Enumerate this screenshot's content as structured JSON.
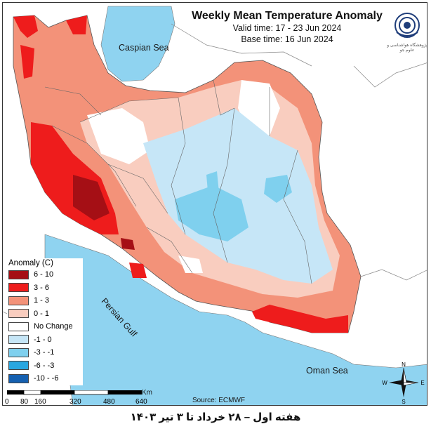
{
  "header": {
    "title": "Weekly Mean Temperature Anomaly",
    "valid_time": "Valid time: 17 - 23 Jun 2024",
    "base_time": "Base time: 16 Jun 2024"
  },
  "logo": {
    "icon": "swirl-logo-icon",
    "text": "پژوهشگاه هواشناسی و علوم جو"
  },
  "water_labels": {
    "caspian": "Caspian Sea",
    "persian_gulf": "Persian Gulf",
    "oman": "Oman Sea"
  },
  "legend": {
    "title": "Anomaly (C)",
    "items": [
      {
        "label": "6 - 10",
        "color": "#a50f15"
      },
      {
        "label": "3 - 6",
        "color": "#ee1c1c"
      },
      {
        "label": "1 - 3",
        "color": "#f39279"
      },
      {
        "label": "0 - 1",
        "color": "#f9cdbf"
      },
      {
        "label": "No Change",
        "color": "#ffffff"
      },
      {
        "label": "-1 - 0",
        "color": "#c6e6f7"
      },
      {
        "label": "-3 - -1",
        "color": "#7fd0ee"
      },
      {
        "label": "-6 - -3",
        "color": "#2aa7e0"
      },
      {
        "label": "-10 - -6",
        "color": "#1560b0"
      }
    ]
  },
  "scale": {
    "labels": [
      "0",
      "80",
      "160",
      "320",
      "480",
      "640"
    ],
    "unit": "Km"
  },
  "compass": {
    "n": "N",
    "s": "S",
    "e": "E",
    "w": "W"
  },
  "source": "Source: ECMWF",
  "caption": "هفته اول – ۲۸ خرداد تا ۳ تیر ۱۴۰۳",
  "colors": {
    "sea": "#8fd3f0",
    "land_outside": "#ffffff",
    "border": "#555555"
  }
}
